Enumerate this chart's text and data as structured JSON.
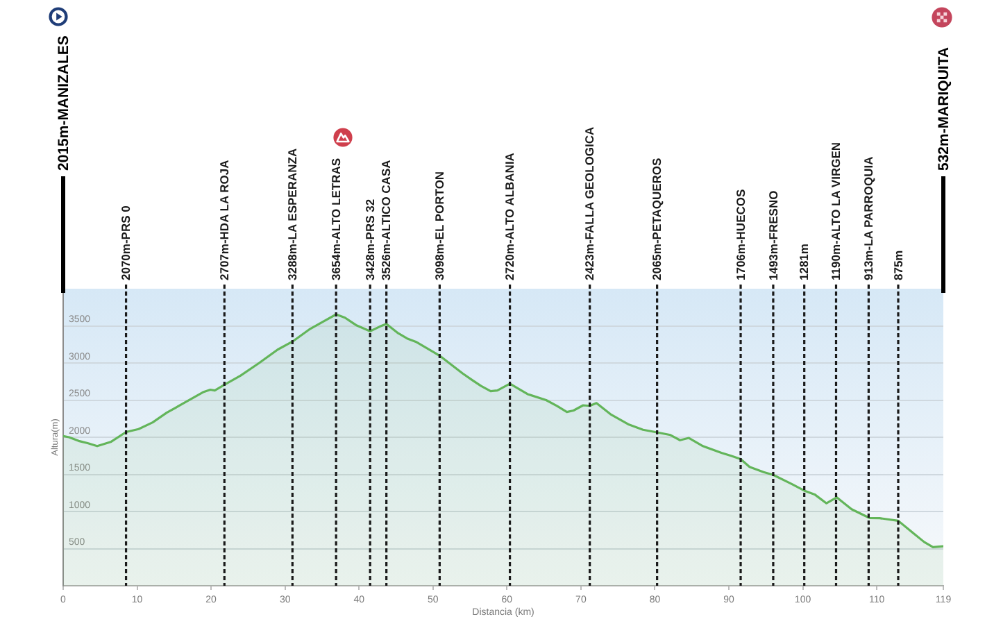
{
  "chart_data": {
    "type": "area",
    "xlabel": "Distancia (km)",
    "ylabel": "Altura(m)",
    "color": "#63b55a",
    "marker": "none",
    "grid": "y",
    "xlim": [
      0,
      119
    ],
    "xticks": [
      0,
      10,
      20,
      30,
      40,
      50,
      60,
      70,
      80,
      90,
      100,
      110,
      119
    ],
    "ylim": [
      0,
      4000
    ],
    "yticks": [
      500,
      1000,
      1500,
      2000,
      2500,
      3000,
      3500
    ],
    "x": [
      0,
      0.8,
      2.1,
      3.3,
      4.6,
      6.5,
      8.5,
      10.2,
      12.1,
      14.0,
      16.5,
      19.0,
      19.9,
      20.5,
      21.8,
      24.0,
      26.5,
      29.0,
      31.0,
      33.4,
      35.2,
      36.9,
      38.1,
      39.6,
      41.5,
      42.8,
      43.7,
      45.3,
      46.5,
      47.8,
      50.9,
      54.0,
      55.3,
      56.5,
      57.8,
      58.7,
      60.4,
      62.8,
      65.3,
      66.8,
      68.1,
      69.0,
      70.3,
      71.2,
      72.1,
      74.0,
      76.5,
      78.4,
      80.3,
      82.1,
      83.4,
      84.6,
      86.5,
      89.0,
      90.3,
      91.6,
      92.8,
      94.7,
      96.0,
      98.5,
      100.2,
      101.6,
      103.2,
      104.6,
      106.6,
      109.0,
      110.4,
      112.9,
      114.8,
      116.4,
      117.6,
      119
    ],
    "values": [
      2015,
      2000,
      1950,
      1920,
      1880,
      1940,
      2070,
      2110,
      2200,
      2330,
      2470,
      2610,
      2640,
      2630,
      2707,
      2830,
      3000,
      3180,
      3288,
      3460,
      3560,
      3654,
      3610,
      3510,
      3428,
      3490,
      3526,
      3400,
      3330,
      3280,
      3098,
      2860,
      2770,
      2690,
      2620,
      2630,
      2720,
      2580,
      2500,
      2420,
      2340,
      2360,
      2430,
      2423,
      2460,
      2310,
      2170,
      2100,
      2065,
      2030,
      1960,
      1990,
      1880,
      1790,
      1750,
      1706,
      1600,
      1530,
      1493,
      1370,
      1281,
      1230,
      1110,
      1190,
      1030,
      913,
      910,
      875,
      720,
      590,
      520,
      532
    ],
    "ref_lines": [
      {
        "axis": "x",
        "value": 0,
        "label": "2015m-MANIZALES",
        "color": "#000000",
        "line_style": "solid"
      },
      {
        "axis": "x",
        "value": 8.5,
        "label": "2070m-PRS 0",
        "color": "#1a1a1a",
        "line_style": "dashed"
      },
      {
        "axis": "x",
        "value": 21.8,
        "label": "2707m-HDA LA ROJA",
        "color": "#1a1a1a",
        "line_style": "dashed"
      },
      {
        "axis": "x",
        "value": 31.0,
        "label": "3288m-LA ESPERANZA",
        "color": "#1a1a1a",
        "line_style": "dashed"
      },
      {
        "axis": "x",
        "value": 36.9,
        "label": "3654m-ALTO LETRAS",
        "color": "#1a1a1a",
        "line_style": "dashed"
      },
      {
        "axis": "x",
        "value": 41.5,
        "label": "3428m-PRS 32",
        "color": "#1a1a1a",
        "line_style": "dashed"
      },
      {
        "axis": "x",
        "value": 43.7,
        "label": "3526m-ALTICO CASA",
        "color": "#1a1a1a",
        "line_style": "dashed"
      },
      {
        "axis": "x",
        "value": 50.9,
        "label": "3098m-EL PORTON",
        "color": "#1a1a1a",
        "line_style": "dashed"
      },
      {
        "axis": "x",
        "value": 60.4,
        "label": "2720m-ALTO ALBANIA",
        "color": "#1a1a1a",
        "line_style": "dashed"
      },
      {
        "axis": "x",
        "value": 71.2,
        "label": "2423m-FALLA GEOLOGICA",
        "color": "#1a1a1a",
        "line_style": "dashed"
      },
      {
        "axis": "x",
        "value": 80.3,
        "label": "2065m-PETAQUEROS",
        "color": "#1a1a1a",
        "line_style": "dashed"
      },
      {
        "axis": "x",
        "value": 91.6,
        "label": "1706m-HUECOS",
        "color": "#1a1a1a",
        "line_style": "dashed"
      },
      {
        "axis": "x",
        "value": 96.0,
        "label": "1493m-FRESNO",
        "color": "#1a1a1a",
        "line_style": "dashed"
      },
      {
        "axis": "x",
        "value": 100.2,
        "label": "1281m",
        "color": "#1a1a1a",
        "line_style": "dashed"
      },
      {
        "axis": "x",
        "value": 104.5,
        "label": "1190m-ALTO LA VIRGEN",
        "color": "#1a1a1a",
        "line_style": "dashed"
      },
      {
        "axis": "x",
        "value": 108.9,
        "label": "913m-LA PARROQUIA",
        "color": "#1a1a1a",
        "line_style": "dashed"
      },
      {
        "axis": "x",
        "value": 112.9,
        "label": "875m",
        "color": "#1a1a1a",
        "line_style": "dashed"
      },
      {
        "axis": "x",
        "value": 119,
        "label": "532m-MARIQUITA",
        "color": "#000000",
        "line_style": "solid"
      }
    ]
  }
}
